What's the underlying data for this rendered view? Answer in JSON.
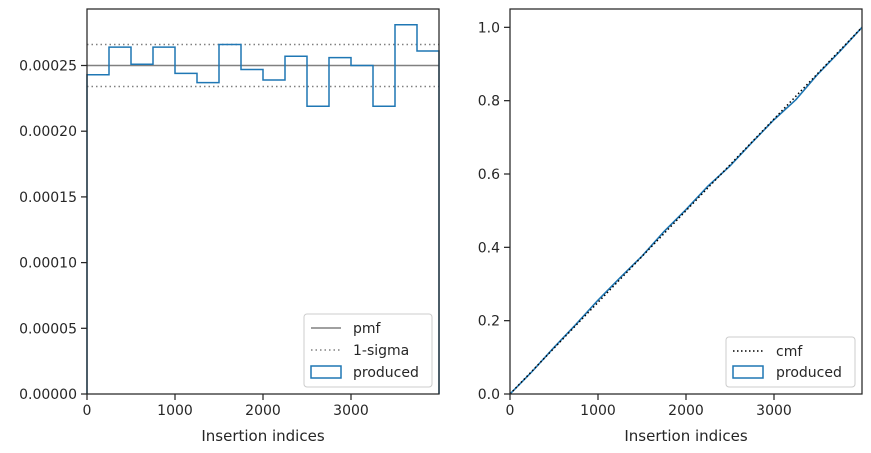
{
  "chart_data": [
    {
      "type": "histogram",
      "xlabel": "Insertion indices",
      "ylabel": "",
      "xlim": [
        0,
        4000
      ],
      "ylim": [
        0,
        0.000293
      ],
      "xticks": [
        0,
        1000,
        2000,
        3000
      ],
      "xtick_labels": [
        "0",
        "1000",
        "2000",
        "3000"
      ],
      "yticks": [
        0,
        5e-05,
        0.0001,
        0.00015,
        0.0002,
        0.00025
      ],
      "ytick_labels": [
        "0.00000",
        "0.00005",
        "0.00010",
        "0.00015",
        "0.00020",
        "0.00025"
      ],
      "bin_width": 250,
      "bin_edges": [
        0,
        250,
        500,
        750,
        1000,
        1250,
        1500,
        1750,
        2000,
        2250,
        2500,
        2750,
        3000,
        3250,
        3500,
        3750,
        4000
      ],
      "series": [
        {
          "name": "pmf",
          "type": "hline",
          "value": 0.00025,
          "color": "#808080",
          "style": "solid"
        },
        {
          "name": "1-sigma",
          "type": "hlines",
          "values": [
            0.000234,
            0.000266
          ],
          "color": "#808080",
          "style": "dotted"
        },
        {
          "name": "produced",
          "type": "step",
          "color": "#1f77b4",
          "values": [
            0.000243,
            0.000264,
            0.000251,
            0.000264,
            0.000244,
            0.000237,
            0.000266,
            0.000247,
            0.000239,
            0.000257,
            0.000219,
            0.000256,
            0.00025,
            0.000219,
            0.000281,
            0.000261
          ]
        }
      ],
      "legend": {
        "position": "lower right",
        "entries": [
          "pmf",
          "1-sigma",
          "produced"
        ]
      },
      "grid": false
    },
    {
      "type": "line",
      "xlabel": "Insertion indices",
      "ylabel": "",
      "xlim": [
        0,
        4000
      ],
      "ylim": [
        0,
        1.05
      ],
      "xticks": [
        0,
        1000,
        2000,
        3000
      ],
      "xtick_labels": [
        "0",
        "1000",
        "2000",
        "3000"
      ],
      "yticks": [
        0,
        0.2,
        0.4,
        0.6,
        0.8,
        1.0
      ],
      "ytick_labels": [
        "0.0",
        "0.2",
        "0.4",
        "0.6",
        "0.8",
        "1.0"
      ],
      "series": [
        {
          "name": "cmf",
          "color": "#000000",
          "style": "dotted",
          "x": [
            0,
            4000
          ],
          "y": [
            0,
            1.0
          ]
        },
        {
          "name": "produced",
          "color": "#1f77b4",
          "style": "solid",
          "x": [
            0,
            250,
            500,
            750,
            1000,
            1250,
            1500,
            1750,
            2000,
            2250,
            2500,
            2750,
            3000,
            3250,
            3500,
            3750,
            4000
          ],
          "y": [
            0,
            0.061,
            0.127,
            0.19,
            0.256,
            0.317,
            0.376,
            0.443,
            0.503,
            0.567,
            0.622,
            0.686,
            0.748,
            0.803,
            0.873,
            0.935,
            1.0
          ]
        }
      ],
      "legend": {
        "position": "lower right",
        "entries": [
          "cmf",
          "produced"
        ]
      },
      "grid": false
    }
  ]
}
